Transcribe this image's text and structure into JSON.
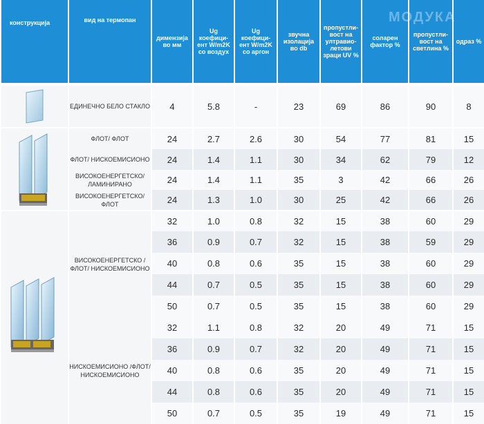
{
  "headers": [
    "конструкција",
    "вид на термопан",
    "димензија во мм",
    "Ug коефици- ент W/m2K со воздух",
    "Ug коефици- ент W/m2K со аргон",
    "звучна изолација во db",
    "пропустли- вост на ултравио- летови зраци UV %",
    "соларен фактор %",
    "пропустли- вост на светлина %",
    "одраз %"
  ],
  "watermark": "МОДУКА",
  "groups": [
    {
      "image": "single-glass-pane-icon",
      "rows": [
        {
          "name": "ЕДИНЕЧНО БЕЛО СТАКЛО",
          "values": [
            "4",
            "5.8",
            "-",
            "23",
            "69",
            "86",
            "90",
            "8"
          ]
        }
      ]
    },
    {
      "image": "double-glazing-icon",
      "rows": [
        {
          "name": "ФЛОТ/ ФЛОТ",
          "values": [
            "24",
            "2.7",
            "2.6",
            "30",
            "54",
            "77",
            "81",
            "15"
          ]
        },
        {
          "name": "ФЛОТ/ НИСКОЕМИСИОНО",
          "values": [
            "24",
            "1.4",
            "1.1",
            "30",
            "34",
            "62",
            "79",
            "12"
          ]
        },
        {
          "name": "ВИСОКОЕНЕРГЕТСКО/ ЛАМИНИРАНО",
          "values": [
            "24",
            "1.4",
            "1.1",
            "35",
            "3",
            "42",
            "66",
            "26"
          ]
        },
        {
          "name": "ВИСОКОЕНЕРГЕТСКО/ ФЛОТ",
          "values": [
            "24",
            "1.3",
            "1.0",
            "30",
            "25",
            "42",
            "66",
            "26"
          ]
        }
      ]
    },
    {
      "image": "triple-glazing-icon",
      "subgroups": [
        {
          "name": "ВИСОКОЕНЕРГЕТСКО /ФЛОТ/ НИСКОЕМИСИОНО",
          "rows": [
            [
              "32",
              "1.0",
              "0.8",
              "32",
              "15",
              "38",
              "60",
              "29"
            ],
            [
              "36",
              "0.9",
              "0.7",
              "32",
              "15",
              "38",
              "59",
              "29"
            ],
            [
              "40",
              "0.8",
              "0.6",
              "35",
              "15",
              "38",
              "60",
              "29"
            ],
            [
              "44",
              "0.7",
              "0.5",
              "35",
              "15",
              "38",
              "60",
              "29"
            ],
            [
              "50",
              "0.7",
              "0.5",
              "35",
              "15",
              "38",
              "60",
              "29"
            ]
          ]
        },
        {
          "name": "НИСКОЕМИСИОНО /ФЛОТ/ НИСКОЕМИСИОНО",
          "rows": [
            [
              "32",
              "1.1",
              "0.8",
              "32",
              "20",
              "49",
              "71",
              "15"
            ],
            [
              "36",
              "0.9",
              "0.7",
              "32",
              "20",
              "49",
              "71",
              "15"
            ],
            [
              "40",
              "0.8",
              "0.6",
              "35",
              "20",
              "49",
              "71",
              "15"
            ],
            [
              "44",
              "0.8",
              "0.6",
              "35",
              "20",
              "49",
              "71",
              "15"
            ],
            [
              "50",
              "0.7",
              "0.5",
              "35",
              "19",
              "49",
              "71",
              "15"
            ]
          ]
        }
      ]
    }
  ]
}
